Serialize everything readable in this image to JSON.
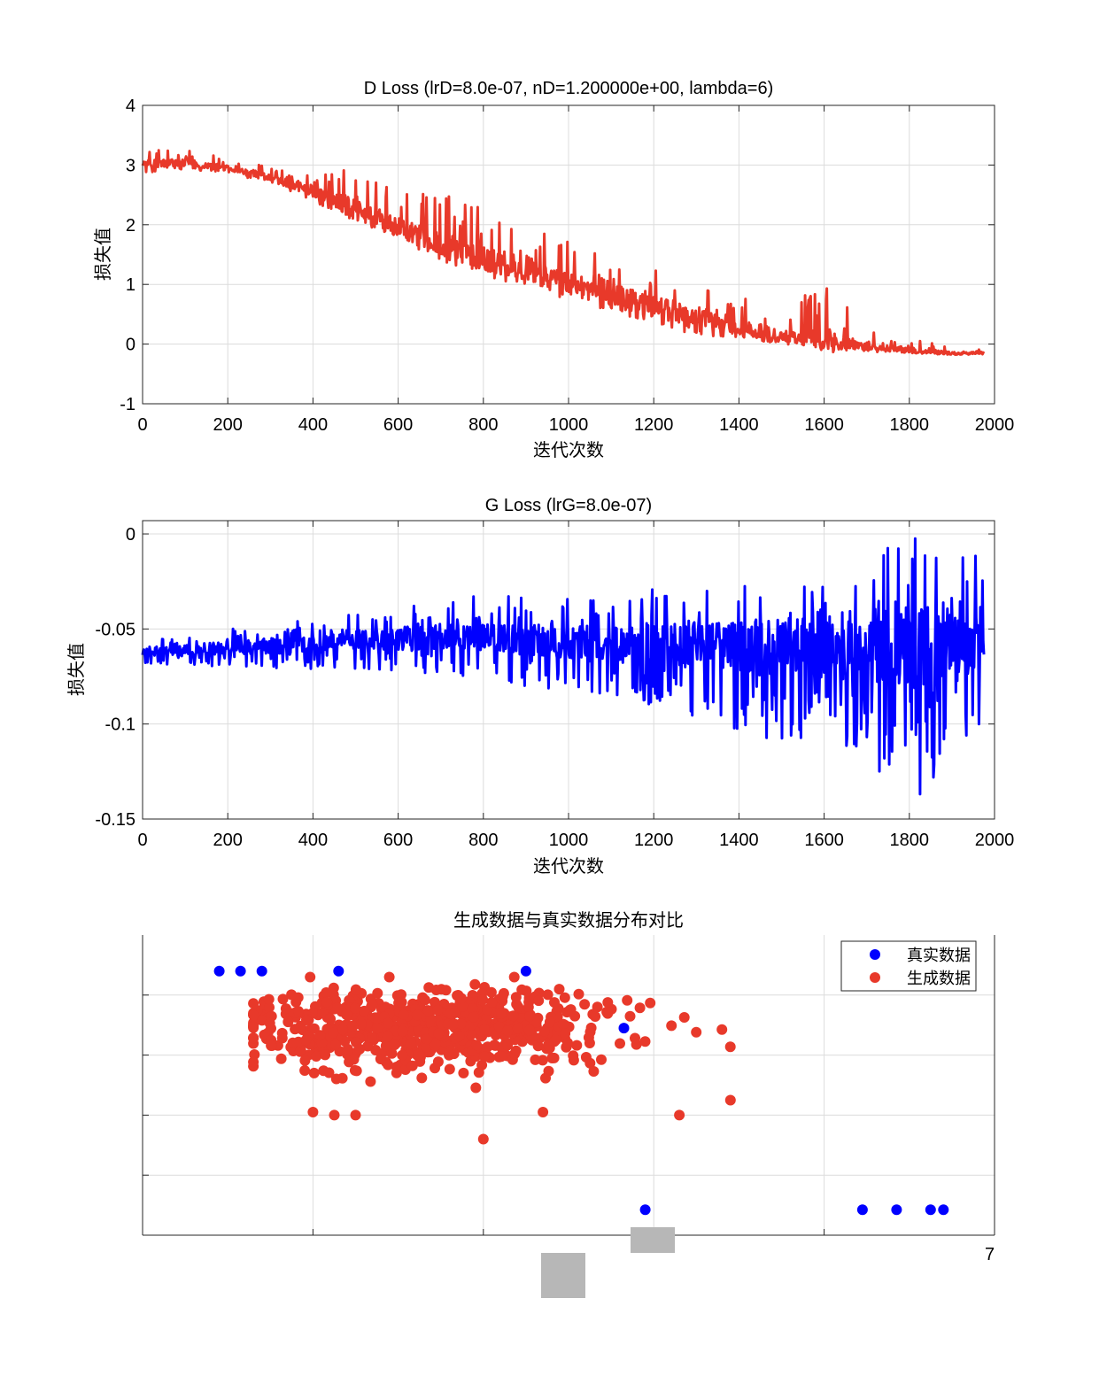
{
  "page": {
    "page_number": "7"
  },
  "chart_data": [
    {
      "type": "line",
      "title": "D Loss (lrD=8.0e-07, nD=1.200000e+00, lambda=6)",
      "xlabel": "迭代次数",
      "ylabel": "损失值",
      "xlim": [
        0,
        2000
      ],
      "ylim": [
        -1,
        4
      ],
      "xticks": [
        0,
        200,
        400,
        600,
        800,
        1000,
        1200,
        1400,
        1600,
        1800,
        2000
      ],
      "yticks": [
        -1,
        0,
        1,
        2,
        3,
        4
      ],
      "grid": true,
      "color": "#e8392a",
      "series": [
        {
          "name": "D Loss",
          "x": [
            0,
            100,
            200,
            300,
            400,
            500,
            600,
            700,
            800,
            900,
            1000,
            1100,
            1200,
            1300,
            1400,
            1500,
            1600,
            1700,
            1800,
            1900,
            1975
          ],
          "values": [
            3.0,
            3.05,
            2.95,
            2.8,
            2.55,
            2.25,
            1.95,
            1.7,
            1.45,
            1.25,
            1.05,
            0.85,
            0.65,
            0.45,
            0.3,
            0.15,
            0.05,
            -0.05,
            -0.1,
            -0.15,
            -0.15
          ],
          "noise_upper": [
            0.3,
            0.25,
            0.15,
            0.2,
            0.3,
            0.8,
            0.6,
            0.8,
            1.0,
            0.7,
            0.7,
            0.6,
            0.6,
            0.5,
            0.5,
            0.4,
            1.0,
            0.4,
            0.2,
            0.1,
            0.05
          ],
          "noise_lower": [
            0.15,
            0.12,
            0.1,
            0.1,
            0.2,
            0.2,
            0.2,
            0.3,
            0.3,
            0.3,
            0.3,
            0.3,
            0.3,
            0.3,
            0.2,
            0.15,
            0.1,
            0.05,
            0.05,
            0.03,
            0.02
          ]
        }
      ]
    },
    {
      "type": "line",
      "title": "G Loss (lrG=8.0e-07)",
      "xlabel": "迭代次数",
      "ylabel": "损失值",
      "xlim": [
        0,
        2000
      ],
      "ylim": [
        -0.15,
        0.007
      ],
      "xticks": [
        0,
        200,
        400,
        600,
        800,
        1000,
        1200,
        1400,
        1600,
        1800,
        2000
      ],
      "yticks": [
        -0.15,
        -0.1,
        -0.05,
        0
      ],
      "grid": true,
      "color": "#0000ff",
      "series": [
        {
          "name": "G Loss",
          "x": [
            0,
            100,
            200,
            300,
            400,
            500,
            600,
            700,
            800,
            900,
            1000,
            1100,
            1200,
            1300,
            1400,
            1500,
            1600,
            1700,
            1800,
            1900,
            1975
          ],
          "values": [
            -0.062,
            -0.061,
            -0.06,
            -0.059,
            -0.058,
            -0.056,
            -0.055,
            -0.055,
            -0.054,
            -0.056,
            -0.057,
            -0.057,
            -0.056,
            -0.058,
            -0.06,
            -0.059,
            -0.06,
            -0.061,
            -0.062,
            -0.062,
            -0.055
          ],
          "noise_upper": [
            0.007,
            0.008,
            0.01,
            0.012,
            0.013,
            0.015,
            0.017,
            0.02,
            0.022,
            0.023,
            0.023,
            0.025,
            0.027,
            0.03,
            0.035,
            0.035,
            0.035,
            0.04,
            0.07,
            0.05,
            0.045
          ],
          "noise_lower": [
            0.007,
            0.008,
            0.01,
            0.012,
            0.013,
            0.015,
            0.017,
            0.02,
            0.022,
            0.025,
            0.025,
            0.028,
            0.035,
            0.04,
            0.048,
            0.05,
            0.055,
            0.058,
            0.08,
            0.06,
            0.05
          ]
        }
      ]
    },
    {
      "type": "scatter",
      "title": "生成数据与真实数据分布对比",
      "xlabel": "",
      "ylabel": "",
      "xlim": [
        0,
        10
      ],
      "ylim": [
        0,
        10
      ],
      "grid": true,
      "legend": {
        "position": "top-right",
        "entries": [
          "真实数据",
          "生成数据"
        ]
      },
      "series": [
        {
          "name": "真实数据",
          "color": "#0000ff",
          "x": [
            0.9,
            1.15,
            1.4,
            2.3,
            4.5,
            5.65,
            5.9,
            8.45,
            8.85,
            9.25,
            9.4
          ],
          "y": [
            8.8,
            8.8,
            8.8,
            8.8,
            8.8,
            6.9,
            0.85,
            0.85,
            0.85,
            0.85,
            0.85
          ]
        },
        {
          "name": "生成数据",
          "color": "#e8392a",
          "n_points": 700,
          "center": [
            3.4,
            6.9
          ],
          "spread": [
            1.15,
            0.65
          ],
          "x_range": [
            1.3,
            7.3
          ],
          "y_range": [
            3.2,
            8.6
          ],
          "outliers_x": [
            4.0,
            2.0,
            2.5,
            2.25,
            4.7,
            6.3,
            6.9
          ],
          "outliers_y": [
            3.2,
            4.1,
            4.0,
            4.0,
            4.1,
            4.0,
            4.5
          ]
        }
      ]
    }
  ]
}
